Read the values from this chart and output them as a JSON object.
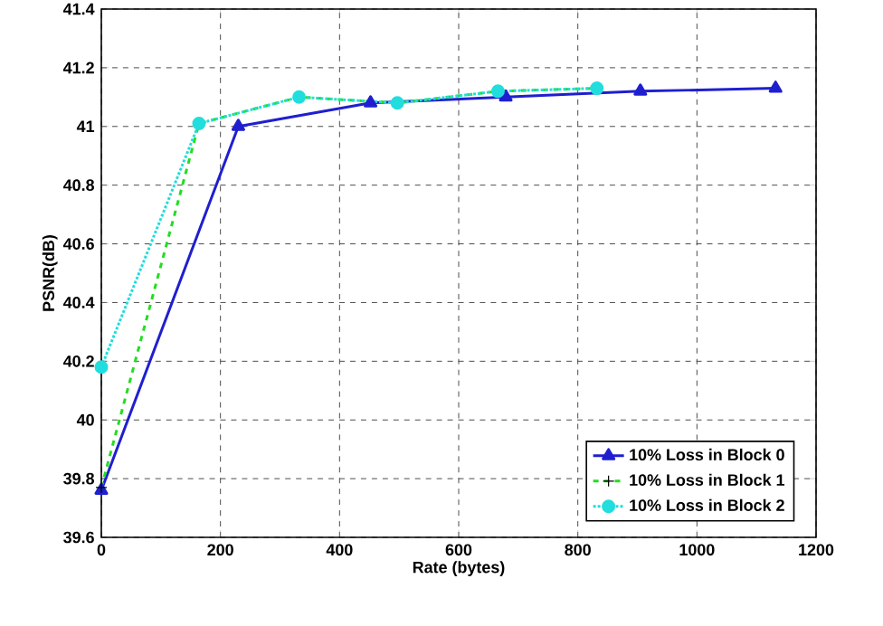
{
  "chart_data": {
    "type": "line",
    "xlabel": "Rate (bytes)",
    "ylabel": "PSNR(dB)",
    "xlim": [
      0,
      1200
    ],
    "ylim": [
      39.6,
      41.4
    ],
    "xticks": [
      0,
      200,
      400,
      600,
      800,
      1000,
      1200
    ],
    "yticks": [
      39.6,
      39.8,
      40,
      40.2,
      40.4,
      40.6,
      40.8,
      41,
      41.2,
      41.4
    ],
    "grid": true,
    "legend": "bottom right",
    "series": [
      {
        "name": "10% Loss in Block 0",
        "color": "#1f1fd0",
        "marker": "triangle",
        "line_style": "solid",
        "x": [
          0,
          230,
          452,
          679,
          905,
          1132
        ],
        "values": [
          39.76,
          41.0,
          41.08,
          41.1,
          41.12,
          41.13
        ]
      },
      {
        "name": "10% Loss in Block 1",
        "color": "#22dd22",
        "marker": "cross",
        "line_style": "dashed",
        "x": [
          0,
          164,
          332,
          497,
          666,
          832
        ],
        "values": [
          39.77,
          41.01,
          41.1,
          41.08,
          41.12,
          41.13
        ]
      },
      {
        "name": "10% Loss in Block 2",
        "color": "#22dddd",
        "marker": "circle",
        "line_style": "dotted",
        "x": [
          0,
          164,
          332,
          497,
          666,
          832
        ],
        "values": [
          40.18,
          41.01,
          41.1,
          41.08,
          41.12,
          41.13
        ]
      }
    ]
  }
}
